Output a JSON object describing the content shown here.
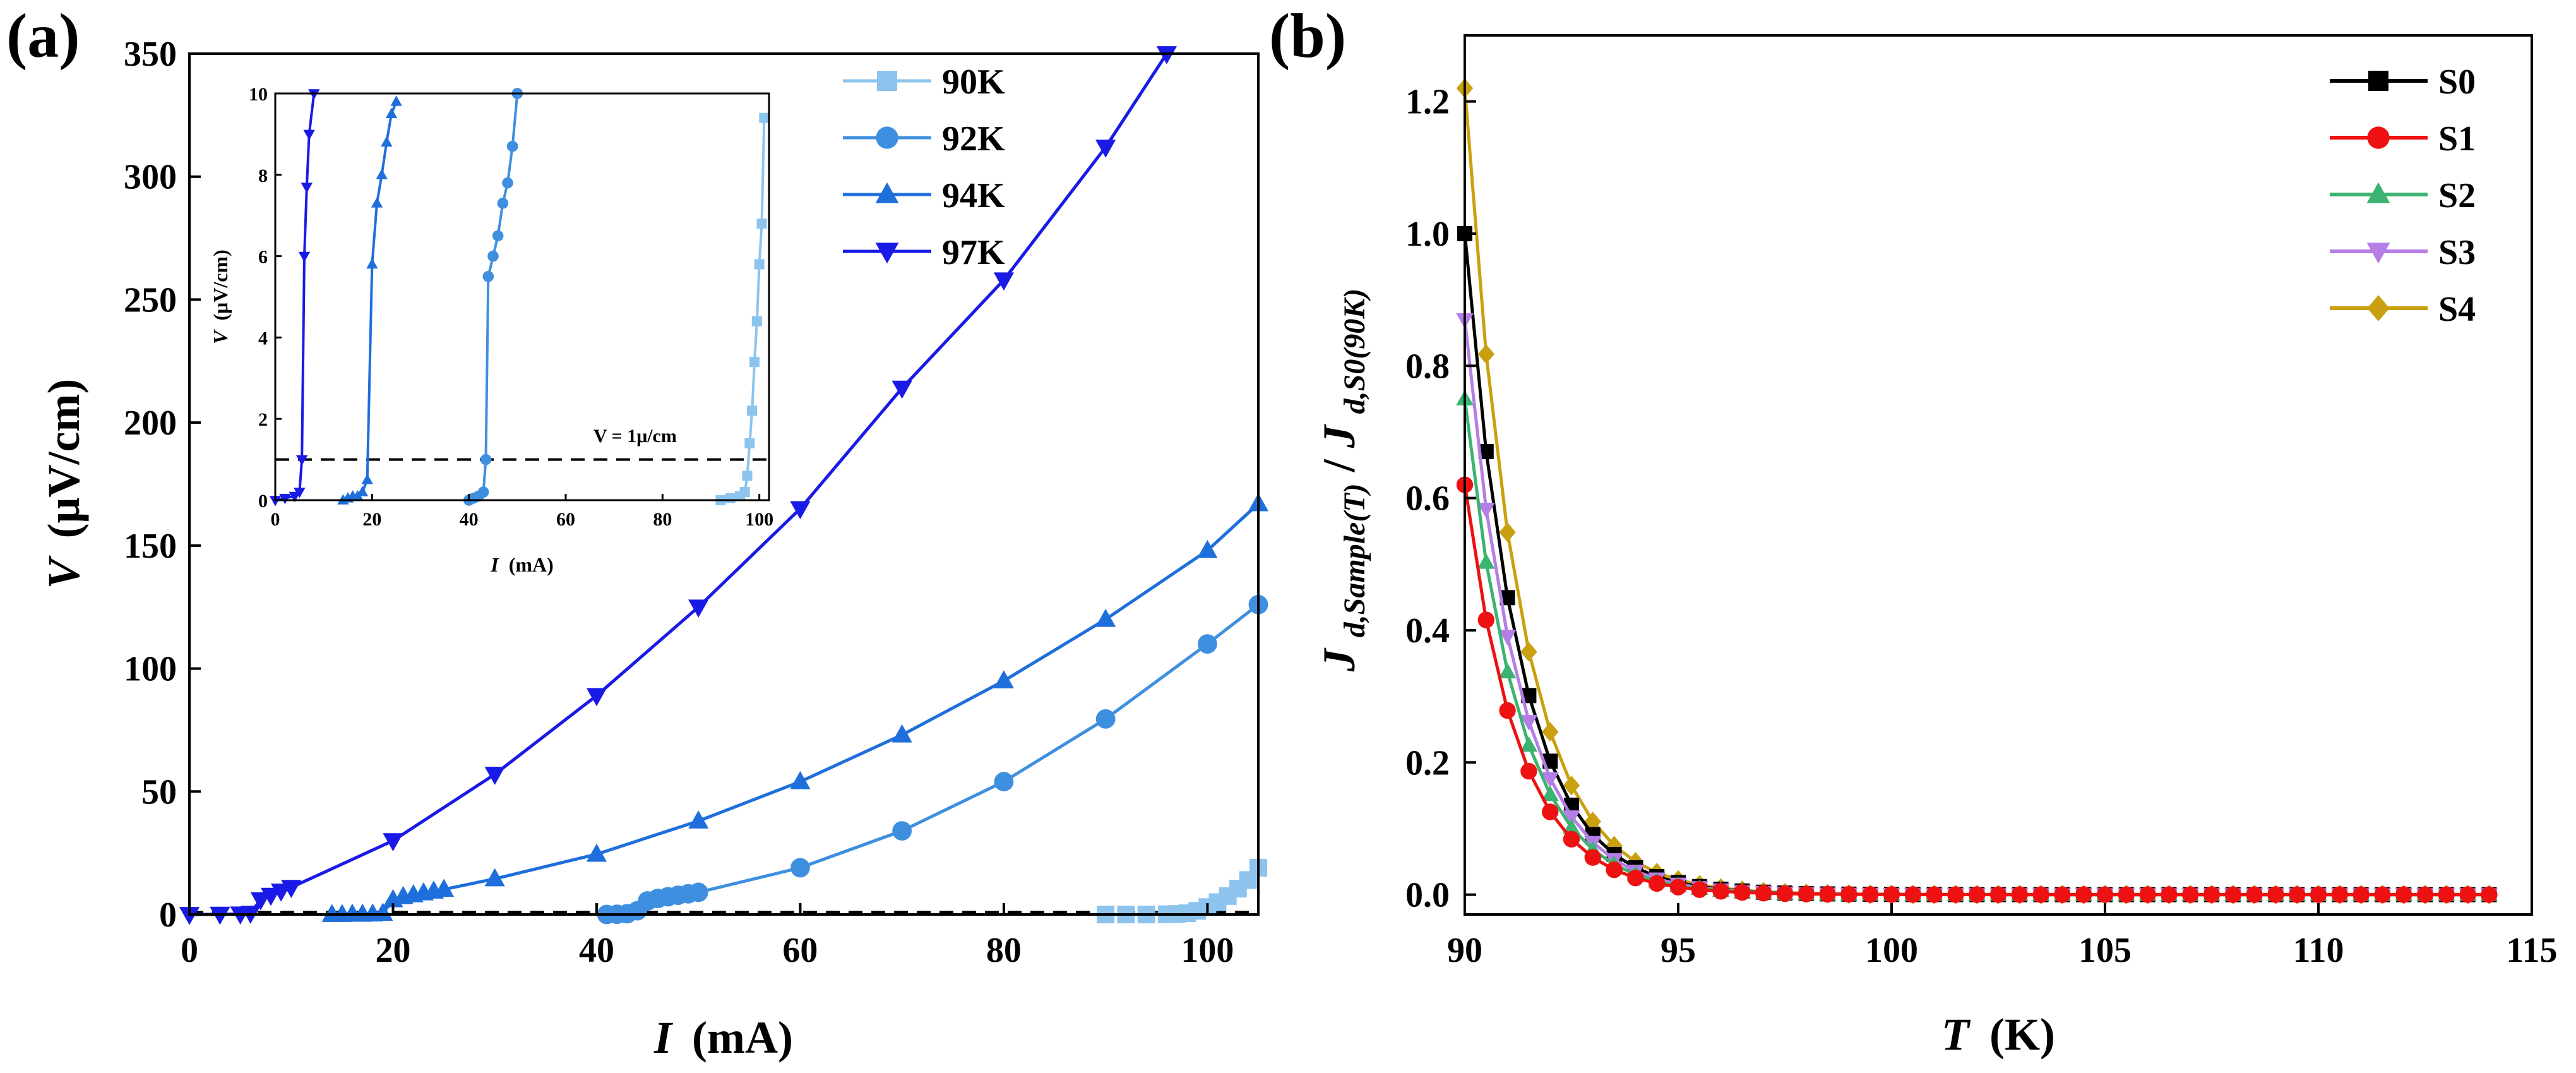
{
  "chart_data": [
    {
      "panel": "(a)",
      "type": "line",
      "xlabel": "I (mA)",
      "xlabel_var": "I",
      "xlabel_unit": "(mA)",
      "ylabel": "V (μV/cm)",
      "ylabel_var": "V",
      "ylabel_unit": "(μV/cm)",
      "xlim": [
        0,
        105
      ],
      "ylim": [
        0,
        350
      ],
      "xticks": [
        0,
        20,
        40,
        60,
        80,
        100
      ],
      "yticks": [
        0,
        50,
        100,
        150,
        200,
        250,
        300,
        350
      ],
      "legend_position": "top-right",
      "criterion_line": 1,
      "series": [
        {
          "name": "90K",
          "color": "#8cc4ee",
          "marker": "square",
          "x": [
            90,
            92,
            94,
            96,
            97,
            98,
            99,
            100,
            101,
            102,
            103,
            104,
            105
          ],
          "y": [
            0,
            0,
            0,
            0.1,
            0.2,
            0.5,
            1.5,
            3,
            5,
            7.5,
            10.5,
            14,
            19
          ]
        },
        {
          "name": "92K",
          "color": "#3f8fe0",
          "marker": "circle",
          "x": [
            41,
            42,
            43,
            44,
            45,
            46,
            47,
            48,
            49,
            50,
            60,
            70,
            80,
            90,
            100,
            105
          ],
          "y": [
            0,
            0.1,
            0.3,
            1.5,
            5.5,
            6.5,
            7.2,
            7.8,
            8.4,
            9,
            19,
            34,
            54,
            79.5,
            110,
            126
          ]
        },
        {
          "name": "94K",
          "color": "#1e6fdc",
          "marker": "triangle-up",
          "x": [
            14,
            15,
            16,
            17,
            18,
            19,
            20,
            21,
            22,
            23,
            24,
            25,
            30,
            40,
            50,
            60,
            70,
            80,
            90,
            100,
            105
          ],
          "y": [
            0,
            0,
            0.1,
            0.1,
            0.2,
            0.5,
            6,
            7.3,
            8,
            8.8,
            9.5,
            10.2,
            14.5,
            24.5,
            38,
            54,
            73,
            95,
            120,
            148,
            167
          ]
        },
        {
          "name": "97K",
          "color": "#1a1ae6",
          "marker": "triangle-down",
          "x": [
            0,
            3,
            5,
            6,
            7,
            8,
            9,
            10,
            20,
            30,
            40,
            50,
            60,
            70,
            80,
            90,
            96
          ],
          "y": [
            0,
            0.1,
            0.2,
            0.5,
            6,
            7.8,
            9.5,
            11,
            30,
            57,
            89,
            125,
            165,
            214,
            258,
            312,
            350
          ]
        }
      ],
      "inset": {
        "xlabel": "I (mA)",
        "xlabel_var": "I",
        "xlabel_unit": "(mA)",
        "ylabel": "V (μV/cm)",
        "ylabel_var": "V",
        "ylabel_unit": "(μV/cm)",
        "xlim": [
          0,
          102
        ],
        "ylim": [
          0,
          10
        ],
        "xticks": [
          0,
          20,
          40,
          60,
          80,
          100
        ],
        "yticks": [
          0,
          2,
          4,
          6,
          8,
          10
        ],
        "annotation": "V = 1μ/cm",
        "hline": 1,
        "series": [
          {
            "name": "90K",
            "color": "#8cc4ee",
            "marker": "square",
            "x": [
              92,
              94,
              96,
              97,
              97.5,
              98,
              98.5,
              99,
              99.5,
              100,
              100.5,
              101
            ],
            "y": [
              0,
              0.05,
              0.1,
              0.2,
              0.6,
              1.4,
              2.2,
              3.4,
              4.4,
              5.8,
              6.8,
              9.4
            ]
          },
          {
            "name": "92K",
            "color": "#3f8fe0",
            "marker": "circle",
            "x": [
              40,
              41,
              42,
              43,
              43.5,
              44,
              45,
              46,
              47,
              48,
              49,
              50
            ],
            "y": [
              0,
              0.05,
              0.1,
              0.2,
              1,
              5.5,
              6,
              6.5,
              7.3,
              7.8,
              8.7,
              10
            ]
          },
          {
            "name": "94K",
            "color": "#1e6fdc",
            "marker": "triangle-up",
            "x": [
              14,
              15,
              16,
              17,
              18,
              19,
              20,
              21,
              22,
              23,
              24,
              25
            ],
            "y": [
              0,
              0.05,
              0.1,
              0.1,
              0.2,
              0.5,
              5.8,
              7.3,
              8,
              8.8,
              9.5,
              9.8
            ]
          },
          {
            "name": "97K",
            "color": "#1a1ae6",
            "marker": "triangle-down",
            "x": [
              0,
              2,
              4,
              5,
              5.5,
              6,
              6.5,
              7,
              8
            ],
            "y": [
              0,
              0.05,
              0.1,
              0.2,
              1,
              6,
              7.7,
              9,
              10
            ]
          }
        ]
      }
    },
    {
      "panel": "(b)",
      "type": "line",
      "xlabel": "T (K)",
      "xlabel_var": "T",
      "xlabel_unit": "(K)",
      "ylabel": "Jd,Sample(T)/Jd,S0(90K)",
      "ylabel_parts": {
        "num_main": "J",
        "num_sub": "d,Sample(T)",
        "sep": "/",
        "den_main": "J",
        "den_sub": "d,S0(90K)"
      },
      "xlim": [
        90,
        115
      ],
      "ylim": [
        -0.03,
        1.3
      ],
      "xticks": [
        90,
        95,
        100,
        105,
        110,
        115
      ],
      "yticks": [
        0.0,
        0.2,
        0.4,
        0.6,
        0.8,
        1.0,
        1.2
      ],
      "ytick_labels": [
        "0.0",
        "0.2",
        "0.4",
        "0.6",
        "0.8",
        "1.0",
        "1.2"
      ],
      "legend_position": "top-right",
      "x_range": [
        90,
        114
      ],
      "x_step": 0.5,
      "decay_rate_per_K": 0.8,
      "series": [
        {
          "name": "S0",
          "color": "#000000",
          "marker": "square",
          "y0": 1.0
        },
        {
          "name": "S1",
          "color": "#ee1111",
          "marker": "circle",
          "y0": 0.62
        },
        {
          "name": "S2",
          "color": "#3cb371",
          "marker": "triangle-up",
          "y0": 0.75
        },
        {
          "name": "S3",
          "color": "#b57ee6",
          "marker": "triangle-down",
          "y0": 0.87
        },
        {
          "name": "S4",
          "color": "#c9a00f",
          "marker": "diamond",
          "y0": 1.22
        }
      ]
    }
  ]
}
